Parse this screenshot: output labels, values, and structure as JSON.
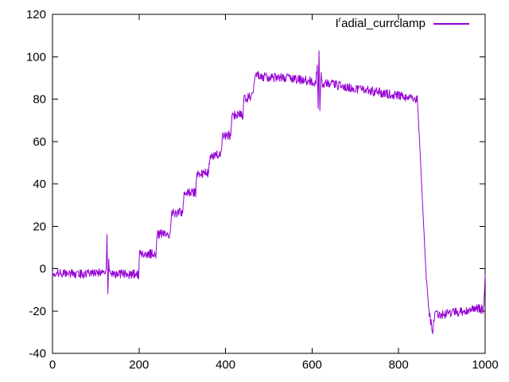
{
  "chart": {
    "background": "#ffffff",
    "axis_color": "#000000",
    "line_color": "#9400d3",
    "legend": {
      "label_base": "I",
      "label_sup": "r",
      "label_rest": "adial_currclamp"
    }
  },
  "chart_data": {
    "type": "line",
    "title": "",
    "xlabel": "",
    "ylabel": "",
    "xlim": [
      0,
      1000
    ],
    "ylim": [
      -40,
      120
    ],
    "xticks": [
      0,
      200,
      400,
      600,
      800,
      1000
    ],
    "yticks": [
      -40,
      -20,
      0,
      20,
      40,
      60,
      80,
      100,
      120
    ],
    "grid": false,
    "legend_position": "top-right",
    "series": [
      {
        "name": "Iʳadial_currclamp",
        "color": "#9400d3",
        "noise_amplitude": 2.2,
        "keypoints": [
          [
            0,
            -2
          ],
          [
            60,
            -2.5
          ],
          [
            124,
            -2
          ],
          [
            126,
            16
          ],
          [
            128,
            -12
          ],
          [
            130,
            4
          ],
          [
            132,
            -2
          ],
          [
            160,
            -2.5
          ],
          [
            199,
            -3
          ],
          [
            201,
            7
          ],
          [
            239,
            7
          ],
          [
            242,
            16
          ],
          [
            272,
            16.5
          ],
          [
            275,
            26
          ],
          [
            301,
            26.5
          ],
          [
            304,
            35.5
          ],
          [
            331,
            36
          ],
          [
            334,
            45
          ],
          [
            361,
            45
          ],
          [
            364,
            53.5
          ],
          [
            390,
            53.5
          ],
          [
            393,
            63
          ],
          [
            412,
            63
          ],
          [
            415,
            72.5
          ],
          [
            440,
            72.5
          ],
          [
            443,
            80.5
          ],
          [
            464,
            81
          ],
          [
            467,
            90
          ],
          [
            472,
            91
          ],
          [
            520,
            90
          ],
          [
            560,
            89.5
          ],
          [
            609,
            88
          ],
          [
            612,
            96
          ],
          [
            614,
            76
          ],
          [
            616,
            103
          ],
          [
            618,
            75
          ],
          [
            621,
            93
          ],
          [
            624,
            87.5
          ],
          [
            660,
            86.5
          ],
          [
            700,
            85
          ],
          [
            760,
            83
          ],
          [
            800,
            81.5
          ],
          [
            843,
            80
          ],
          [
            846,
            70
          ],
          [
            852,
            45
          ],
          [
            858,
            20
          ],
          [
            864,
            -5
          ],
          [
            870,
            -20
          ],
          [
            876,
            -27
          ],
          [
            879,
            -29
          ],
          [
            883,
            -22
          ],
          [
            900,
            -21.5
          ],
          [
            940,
            -20.5
          ],
          [
            985,
            -19
          ],
          [
            996,
            -19
          ],
          [
            998,
            -12
          ],
          [
            1000,
            -3
          ]
        ]
      }
    ]
  }
}
